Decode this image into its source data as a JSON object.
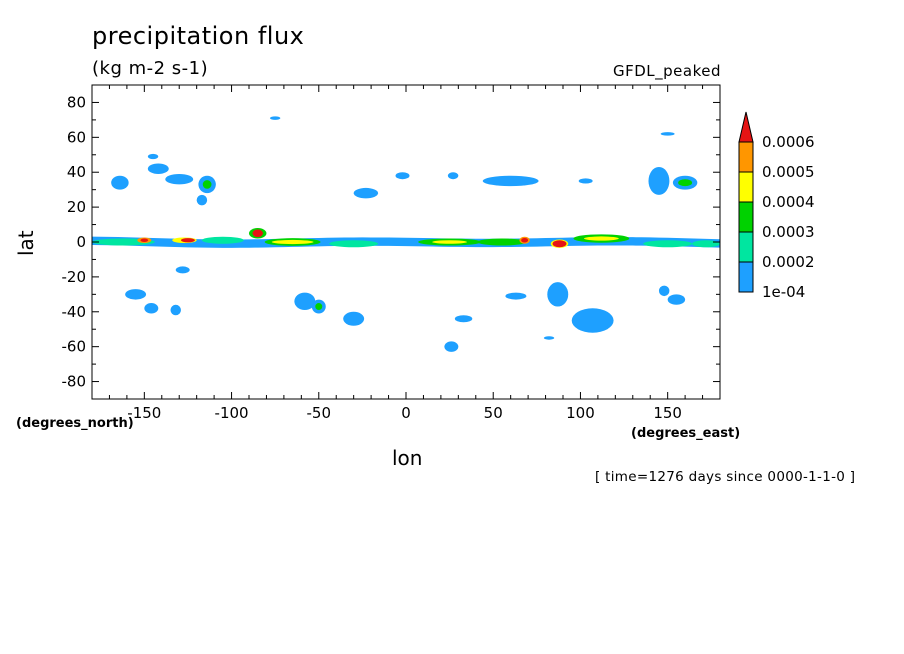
{
  "chart_data": {
    "type": "heatmap",
    "title": "precipitation flux",
    "units": "(kg m-2 s-1)",
    "model": "GFDL_peaked",
    "xlabel": "lon",
    "ylabel": "lat",
    "x_units": "(degrees_east)",
    "y_units": "(degrees_north)",
    "time_note": "[ time=1276 days since 0000-1-1-0 ]",
    "xlim": [
      -180,
      180
    ],
    "ylim": [
      -90,
      90
    ],
    "x_ticks": [
      -150,
      -100,
      -50,
      0,
      50,
      100,
      150
    ],
    "y_ticks": [
      80,
      60,
      40,
      20,
      0,
      -20,
      -40,
      -60,
      -80
    ],
    "x_tick_labels": [
      "-150",
      "-100",
      "-50",
      "0",
      "50",
      "100",
      "150"
    ],
    "y_tick_labels": [
      "80",
      "60",
      "40",
      "20",
      "0",
      "-20",
      "-40",
      "-60",
      "-80"
    ],
    "colorbar": {
      "levels": [
        0.0001,
        0.0002,
        0.0003,
        0.0004,
        0.0005,
        0.0006
      ],
      "labels": [
        "1e-04",
        "0.0002",
        "0.0003",
        "0.0004",
        "0.0005",
        "0.0006"
      ],
      "colors": [
        "#1ea0ff",
        "#00e6a0",
        "#00d200",
        "#ffff00",
        "#ff9600",
        "#e61414"
      ]
    },
    "band_colors": {
      "b1": "#1ea0ff",
      "b2": "#00e6a0",
      "b3": "#00d200",
      "b4": "#ffff00",
      "b5": "#ff9600",
      "b6": "#e61414"
    },
    "features": [
      {
        "lon": -142,
        "lat": 42,
        "dlon": 6,
        "dlat": 3,
        "band": "b1"
      },
      {
        "lon": -164,
        "lat": 34,
        "dlon": 5,
        "dlat": 4,
        "band": "b1"
      },
      {
        "lon": -145,
        "lat": 49,
        "dlon": 3,
        "dlat": 1.5,
        "band": "b1"
      },
      {
        "lon": -130,
        "lat": 36,
        "dlon": 8,
        "dlat": 3,
        "band": "b1"
      },
      {
        "lon": -114,
        "lat": 33,
        "dlon": 5,
        "dlat": 5,
        "band": "b1"
      },
      {
        "lon": -114,
        "lat": 33,
        "dlon": 2.5,
        "dlat": 2.5,
        "band": "b3"
      },
      {
        "lon": -117,
        "lat": 24,
        "dlon": 3,
        "dlat": 3,
        "band": "b1"
      },
      {
        "lon": -75,
        "lat": 71,
        "dlon": 3,
        "dlat": 1,
        "band": "b1"
      },
      {
        "lon": -23,
        "lat": 28,
        "dlon": 7,
        "dlat": 3,
        "band": "b1"
      },
      {
        "lon": -2,
        "lat": 38,
        "dlon": 4,
        "dlat": 2,
        "band": "b1"
      },
      {
        "lon": 27,
        "lat": 38,
        "dlon": 3,
        "dlat": 2,
        "band": "b1"
      },
      {
        "lon": 60,
        "lat": 35,
        "dlon": 16,
        "dlat": 3,
        "band": "b1"
      },
      {
        "lon": 103,
        "lat": 35,
        "dlon": 4,
        "dlat": 1.5,
        "band": "b1"
      },
      {
        "lon": 145,
        "lat": 35,
        "dlon": 6,
        "dlat": 8,
        "band": "b1"
      },
      {
        "lon": 160,
        "lat": 34,
        "dlon": 7,
        "dlat": 4,
        "band": "b1"
      },
      {
        "lon": 160,
        "lat": 34,
        "dlon": 4,
        "dlat": 2,
        "band": "b3"
      },
      {
        "lon": 150,
        "lat": 62,
        "dlon": 4,
        "dlat": 1,
        "band": "b1"
      },
      {
        "lon": -155,
        "lat": -30,
        "dlon": 6,
        "dlat": 3,
        "band": "b1"
      },
      {
        "lon": -146,
        "lat": -38,
        "dlon": 4,
        "dlat": 3,
        "band": "b1"
      },
      {
        "lon": -132,
        "lat": -39,
        "dlon": 3,
        "dlat": 3,
        "band": "b1"
      },
      {
        "lon": -128,
        "lat": -16,
        "dlon": 4,
        "dlat": 2,
        "band": "b1"
      },
      {
        "lon": -58,
        "lat": -34,
        "dlon": 6,
        "dlat": 5,
        "band": "b1"
      },
      {
        "lon": -50,
        "lat": -37,
        "dlon": 4,
        "dlat": 4,
        "band": "b1"
      },
      {
        "lon": -50,
        "lat": -37,
        "dlon": 2,
        "dlat": 2,
        "band": "b3"
      },
      {
        "lon": -30,
        "lat": -44,
        "dlon": 6,
        "dlat": 4,
        "band": "b1"
      },
      {
        "lon": 33,
        "lat": -44,
        "dlon": 5,
        "dlat": 2,
        "band": "b1"
      },
      {
        "lon": 26,
        "lat": -60,
        "dlon": 4,
        "dlat": 3,
        "band": "b1"
      },
      {
        "lon": 63,
        "lat": -31,
        "dlon": 6,
        "dlat": 2,
        "band": "b1"
      },
      {
        "lon": 87,
        "lat": -30,
        "dlon": 6,
        "dlat": 7,
        "band": "b1"
      },
      {
        "lon": 107,
        "lat": -45,
        "dlon": 12,
        "dlat": 7,
        "band": "b1"
      },
      {
        "lon": 82,
        "lat": -55,
        "dlon": 3,
        "dlat": 1,
        "band": "b1"
      },
      {
        "lon": 148,
        "lat": -28,
        "dlon": 3,
        "dlat": 3,
        "band": "b1"
      },
      {
        "lon": 155,
        "lat": -33,
        "dlon": 5,
        "dlat": 3,
        "band": "b1"
      }
    ],
    "itcz_blobs": [
      {
        "lon": -162,
        "lat": 0,
        "dlon": 18,
        "dlat": 2,
        "band": "b2"
      },
      {
        "lon": -150,
        "lat": 1,
        "dlon": 4,
        "dlat": 1.6,
        "band": "b5"
      },
      {
        "lon": -150,
        "lat": 1,
        "dlon": 2.2,
        "dlat": 1,
        "band": "b6"
      },
      {
        "lon": -127,
        "lat": 1,
        "dlon": 7,
        "dlat": 1.6,
        "band": "b4"
      },
      {
        "lon": -125,
        "lat": 1,
        "dlon": 4,
        "dlat": 1.2,
        "band": "b6"
      },
      {
        "lon": -105,
        "lat": 1,
        "dlon": 12,
        "dlat": 2,
        "band": "b2"
      },
      {
        "lon": -85,
        "lat": 5,
        "dlon": 5,
        "dlat": 3,
        "band": "b3"
      },
      {
        "lon": -85,
        "lat": 5,
        "dlon": 3,
        "dlat": 2.2,
        "band": "b6"
      },
      {
        "lon": -65,
        "lat": 0,
        "dlon": 16,
        "dlat": 2.2,
        "band": "b3"
      },
      {
        "lon": -65,
        "lat": 0,
        "dlon": 12,
        "dlat": 1.2,
        "band": "b4"
      },
      {
        "lon": -30,
        "lat": -1,
        "dlon": 14,
        "dlat": 2,
        "band": "b2"
      },
      {
        "lon": 25,
        "lat": 0,
        "dlon": 18,
        "dlat": 2,
        "band": "b3"
      },
      {
        "lon": 25,
        "lat": 0,
        "dlon": 10,
        "dlat": 1,
        "band": "b4"
      },
      {
        "lon": 55,
        "lat": 0,
        "dlon": 14,
        "dlat": 2,
        "band": "b3"
      },
      {
        "lon": 68,
        "lat": 1,
        "dlon": 3,
        "dlat": 2,
        "band": "b5"
      },
      {
        "lon": 68,
        "lat": 1,
        "dlon": 2,
        "dlat": 1.3,
        "band": "b6"
      },
      {
        "lon": 88,
        "lat": -1,
        "dlon": 5,
        "dlat": 2.4,
        "band": "b4"
      },
      {
        "lon": 88,
        "lat": -1,
        "dlon": 4,
        "dlat": 2,
        "band": "b6"
      },
      {
        "lon": 112,
        "lat": 2,
        "dlon": 16,
        "dlat": 2.4,
        "band": "b3"
      },
      {
        "lon": 112,
        "lat": 2,
        "dlon": 10,
        "dlat": 1.2,
        "band": "b4"
      },
      {
        "lon": 150,
        "lat": -1,
        "dlon": 14,
        "dlat": 2,
        "band": "b2"
      },
      {
        "lon": 172,
        "lat": -1,
        "dlon": 8,
        "dlat": 2,
        "band": "b2"
      }
    ]
  }
}
